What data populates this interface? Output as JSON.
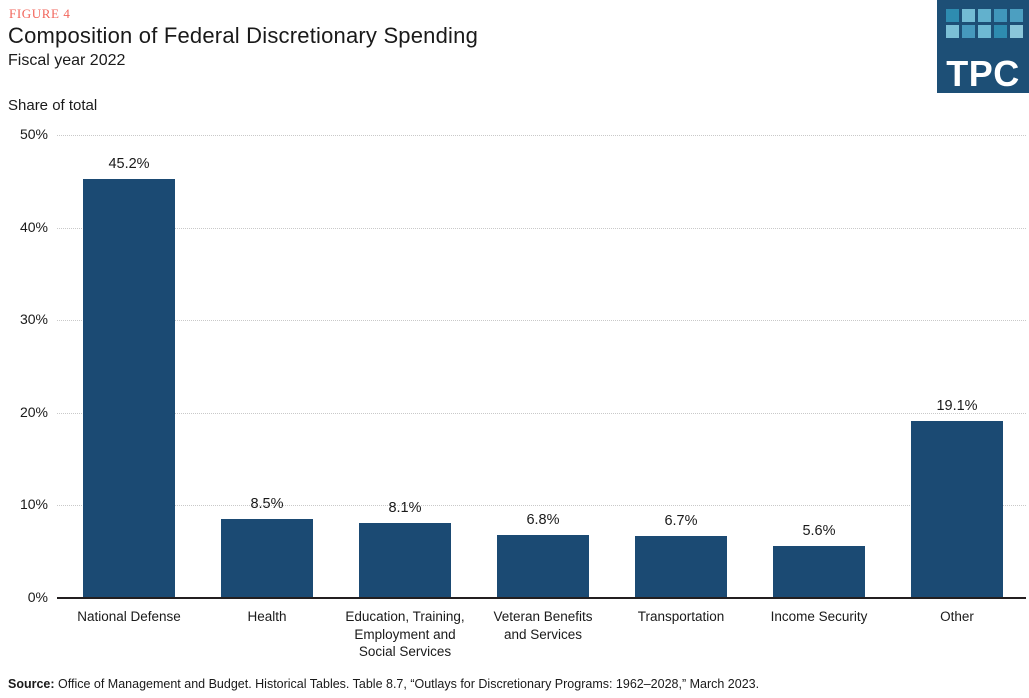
{
  "figure_label": "FIGURE 4",
  "title": "Composition of Federal Discretionary Spending",
  "subtitle": "Fiscal year 2022",
  "axis_title": "Share of total",
  "logo": {
    "text": "TPC",
    "background": "#1D4F76",
    "tiles": [
      "#2E8CB0",
      "#73BCD4",
      "#62B1CD",
      "#4096BB",
      "#4C9FC1",
      "#7CC0D6",
      "#4699BD",
      "#6EB9D3",
      "#2E8CB0",
      "#8AC6DA"
    ]
  },
  "source": {
    "label": "Source:",
    "text": " Office of Management and Budget. Historical Tables. Table 8.7, “Outlays for Discretionary Programs: 1962–2028,” March 2023."
  },
  "chart_data": {
    "type": "bar",
    "title": "Composition of Federal Discretionary Spending",
    "subtitle": "Fiscal year 2022",
    "ylabel": "Share of total",
    "xlabel": "",
    "unit": "percent",
    "categories": [
      "National Defense",
      "Health",
      "Education, Training,\nEmployment and\nSocial Services",
      "Veteran Benefits\nand Services",
      "Transportation",
      "Income Security",
      "Other"
    ],
    "values": [
      45.2,
      8.5,
      8.1,
      6.8,
      6.7,
      5.6,
      19.1
    ],
    "value_labels": [
      "45.2%",
      "8.5%",
      "8.1%",
      "6.8%",
      "6.7%",
      "5.6%",
      "19.1%"
    ],
    "ylim": [
      0,
      50
    ],
    "ytick_values": [
      0,
      10,
      20,
      30,
      40,
      50
    ],
    "ytick_labels": [
      "0%",
      "10%",
      "20%",
      "30%",
      "40%",
      "50%"
    ],
    "grid": "horizontal dotted, behind bars",
    "legend": "none",
    "bar_color": "#1B4A73"
  },
  "colors": {
    "accent_figure_label": "#F2665C",
    "bar": "#1B4A73",
    "text": "#1A1A1A",
    "gridline": "#C9C9C9",
    "axis": "#231F20",
    "logo_background": "#1D4F76"
  }
}
